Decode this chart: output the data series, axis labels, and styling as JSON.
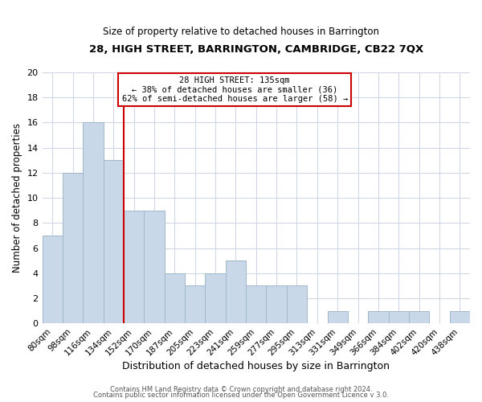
{
  "title": "28, HIGH STREET, BARRINGTON, CAMBRIDGE, CB22 7QX",
  "subtitle": "Size of property relative to detached houses in Barrington",
  "xlabel": "Distribution of detached houses by size in Barrington",
  "ylabel": "Number of detached properties",
  "bar_labels": [
    "80sqm",
    "98sqm",
    "116sqm",
    "134sqm",
    "152sqm",
    "170sqm",
    "187sqm",
    "205sqm",
    "223sqm",
    "241sqm",
    "259sqm",
    "277sqm",
    "295sqm",
    "313sqm",
    "331sqm",
    "349sqm",
    "366sqm",
    "384sqm",
    "402sqm",
    "420sqm",
    "438sqm"
  ],
  "bar_values": [
    7,
    12,
    16,
    13,
    9,
    9,
    4,
    3,
    4,
    5,
    3,
    3,
    3,
    0,
    1,
    0,
    1,
    1,
    1,
    0,
    1
  ],
  "bar_color": "#c8d8e8",
  "bar_edge_color": "#a0b8cc",
  "marker_index": 3.5,
  "marker_color": "#cc0000",
  "ylim": [
    0,
    20
  ],
  "yticks": [
    0,
    2,
    4,
    6,
    8,
    10,
    12,
    14,
    16,
    18,
    20
  ],
  "annotation_title": "28 HIGH STREET: 135sqm",
  "annotation_line1": "← 38% of detached houses are smaller (36)",
  "annotation_line2": "62% of semi-detached houses are larger (58) →",
  "footer1": "Contains HM Land Registry data © Crown copyright and database right 2024.",
  "footer2": "Contains public sector information licensed under the Open Government Licence v 3.0.",
  "bg_color": "#ffffff",
  "grid_color": "#d0d8e8"
}
